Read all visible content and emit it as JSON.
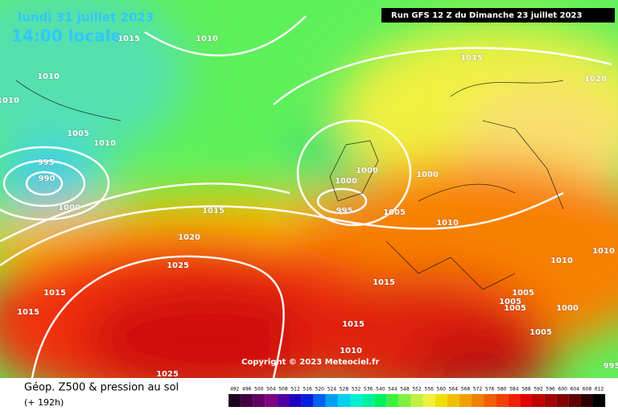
{
  "header": {
    "date": "lundi 31 juillet 2023",
    "time": "14:00 locale",
    "run": "Run GFS 12 Z du Dimanche 23 juillet 2023"
  },
  "map": {
    "isobar_labels": [
      1015,
      1010,
      1010,
      1010,
      1005,
      1010,
      995,
      990,
      1000,
      1015,
      1020,
      1000,
      1000,
      1000,
      995,
      1005,
      1015,
      1020,
      1010,
      1025,
      1015,
      1010,
      1010,
      1015,
      1015,
      1005,
      1005,
      1005,
      1000,
      1015,
      1005,
      1010,
      1025,
      995
    ],
    "copyright": "Copyright © 2023 Meteociel.fr"
  },
  "legend": {
    "title": "Géop. Z500 & pression au sol",
    "lead": "(+ 192h)",
    "scale": [
      492,
      496,
      500,
      504,
      508,
      512,
      516,
      520,
      524,
      528,
      532,
      536,
      540,
      544,
      548,
      552,
      556,
      560,
      564,
      568,
      572,
      576,
      580,
      584,
      588,
      592,
      596,
      600,
      604,
      608,
      612
    ]
  }
}
